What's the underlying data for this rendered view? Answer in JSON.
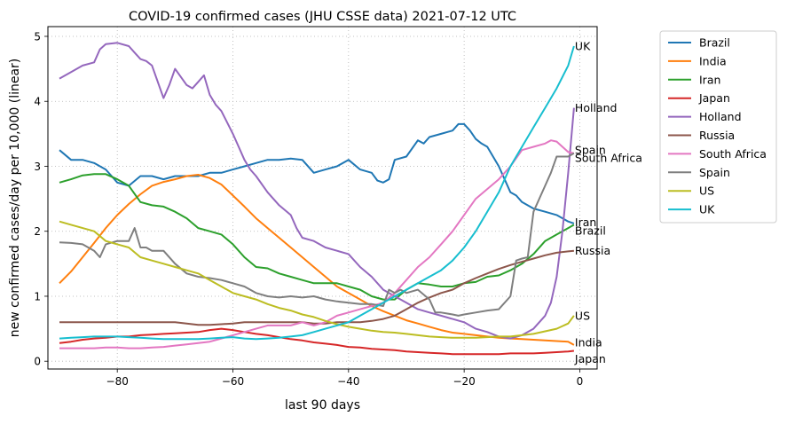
{
  "chart_data": {
    "type": "line",
    "title": "COVID-19 confirmed cases (JHU CSSE data) 2021-07-12 UTC",
    "xlabel": "last 90 days",
    "ylabel": "new confirmed cases/day per 10,000 (linear)",
    "xlim": [
      -92,
      3
    ],
    "ylim": [
      -0.12,
      5.15
    ],
    "xticks": [
      -80,
      -60,
      -40,
      -20,
      0
    ],
    "yticks": [
      0,
      1,
      2,
      3,
      4,
      5
    ],
    "xtick_labels": [
      "−80",
      "−60",
      "−40",
      "−20",
      "0"
    ],
    "ytick_labels": [
      "0",
      "1",
      "2",
      "3",
      "4",
      "5"
    ],
    "grid": true,
    "legend_position": "right, outside plot area",
    "series": [
      {
        "name": "Brazil",
        "color": "#1f77b4",
        "end_label": "Brazil",
        "x": [
          -90,
          -88,
          -86,
          -84,
          -82,
          -80,
          -78,
          -76,
          -74,
          -72,
          -70,
          -68,
          -66,
          -64,
          -62,
          -60,
          -58,
          -56,
          -54,
          -52,
          -50,
          -48,
          -46,
          -44,
          -42,
          -40,
          -38,
          -36,
          -35,
          -34,
          -33,
          -32,
          -30,
          -28,
          -27,
          -26,
          -24,
          -22,
          -21,
          -20,
          -19,
          -18,
          -17,
          -16,
          -14,
          -12,
          -11,
          -10,
          -8,
          -6,
          -4,
          -2,
          -1
        ],
        "y": [
          3.25,
          3.1,
          3.1,
          3.05,
          2.95,
          2.75,
          2.7,
          2.85,
          2.85,
          2.8,
          2.85,
          2.85,
          2.85,
          2.9,
          2.9,
          2.95,
          3.0,
          3.05,
          3.1,
          3.1,
          3.12,
          3.1,
          2.9,
          2.95,
          3.0,
          3.1,
          2.95,
          2.9,
          2.78,
          2.75,
          2.8,
          3.1,
          3.15,
          3.4,
          3.35,
          3.45,
          3.5,
          3.55,
          3.65,
          3.65,
          3.55,
          3.42,
          3.35,
          3.3,
          3.0,
          2.6,
          2.55,
          2.45,
          2.35,
          2.3,
          2.25,
          2.15,
          2.12
        ]
      },
      {
        "name": "India",
        "color": "#ff7f0e",
        "end_label": "India",
        "x": [
          -90,
          -88,
          -86,
          -84,
          -82,
          -80,
          -78,
          -76,
          -74,
          -72,
          -70,
          -68,
          -66,
          -64,
          -62,
          -60,
          -58,
          -56,
          -54,
          -52,
          -50,
          -48,
          -46,
          -44,
          -42,
          -40,
          -38,
          -36,
          -34,
          -32,
          -30,
          -28,
          -26,
          -24,
          -22,
          -20,
          -18,
          -16,
          -14,
          -12,
          -10,
          -8,
          -6,
          -4,
          -2,
          -1
        ],
        "y": [
          1.2,
          1.38,
          1.6,
          1.82,
          2.05,
          2.25,
          2.42,
          2.57,
          2.7,
          2.76,
          2.8,
          2.85,
          2.87,
          2.82,
          2.72,
          2.55,
          2.38,
          2.2,
          2.05,
          1.9,
          1.75,
          1.6,
          1.45,
          1.3,
          1.15,
          1.05,
          0.95,
          0.85,
          0.77,
          0.7,
          0.63,
          0.58,
          0.53,
          0.48,
          0.44,
          0.42,
          0.4,
          0.38,
          0.36,
          0.35,
          0.34,
          0.33,
          0.32,
          0.31,
          0.3,
          0.25
        ]
      },
      {
        "name": "Iran",
        "color": "#2ca02c",
        "end_label": "Iran",
        "x": [
          -90,
          -88,
          -86,
          -84,
          -82,
          -80,
          -78,
          -76,
          -74,
          -72,
          -70,
          -68,
          -66,
          -64,
          -62,
          -60,
          -58,
          -56,
          -54,
          -52,
          -50,
          -48,
          -46,
          -44,
          -42,
          -40,
          -38,
          -36,
          -34,
          -32,
          -30,
          -28,
          -26,
          -24,
          -22,
          -20,
          -18,
          -16,
          -14,
          -12,
          -10,
          -8,
          -6,
          -4,
          -3,
          -2,
          -1
        ],
        "y": [
          2.75,
          2.8,
          2.86,
          2.88,
          2.88,
          2.8,
          2.7,
          2.45,
          2.4,
          2.38,
          2.3,
          2.2,
          2.05,
          2.0,
          1.95,
          1.8,
          1.6,
          1.45,
          1.43,
          1.35,
          1.3,
          1.25,
          1.2,
          1.2,
          1.2,
          1.15,
          1.1,
          1.0,
          0.95,
          0.95,
          1.1,
          1.2,
          1.18,
          1.15,
          1.15,
          1.2,
          1.22,
          1.3,
          1.32,
          1.4,
          1.5,
          1.65,
          1.85,
          1.95,
          2.0,
          2.05,
          2.1
        ]
      },
      {
        "name": "Japan",
        "color": "#d62728",
        "end_label": "Japan",
        "x": [
          -90,
          -88,
          -86,
          -84,
          -82,
          -80,
          -78,
          -76,
          -74,
          -72,
          -70,
          -68,
          -66,
          -64,
          -62,
          -60,
          -58,
          -56,
          -54,
          -52,
          -50,
          -48,
          -46,
          -44,
          -42,
          -40,
          -38,
          -36,
          -34,
          -32,
          -30,
          -28,
          -26,
          -24,
          -22,
          -20,
          -18,
          -16,
          -14,
          -12,
          -10,
          -8,
          -6,
          -4,
          -2,
          -1
        ],
        "y": [
          0.28,
          0.3,
          0.33,
          0.35,
          0.36,
          0.38,
          0.38,
          0.4,
          0.41,
          0.42,
          0.43,
          0.44,
          0.45,
          0.48,
          0.5,
          0.48,
          0.45,
          0.42,
          0.4,
          0.37,
          0.34,
          0.32,
          0.29,
          0.27,
          0.25,
          0.22,
          0.21,
          0.19,
          0.18,
          0.17,
          0.15,
          0.14,
          0.13,
          0.12,
          0.11,
          0.11,
          0.11,
          0.11,
          0.11,
          0.12,
          0.12,
          0.12,
          0.13,
          0.14,
          0.15,
          0.16
        ]
      },
      {
        "name": "Holland",
        "color": "#9467bd",
        "end_label": "Holland",
        "x": [
          -90,
          -88,
          -86,
          -84,
          -83,
          -82,
          -80,
          -78,
          -77,
          -76,
          -75,
          -74,
          -72,
          -71,
          -70,
          -68,
          -67,
          -66,
          -65,
          -64,
          -63,
          -62,
          -60,
          -59,
          -58,
          -57,
          -56,
          -54,
          -52,
          -50,
          -49,
          -48,
          -46,
          -44,
          -42,
          -40,
          -38,
          -36,
          -34,
          -32,
          -30,
          -28,
          -26,
          -24,
          -22,
          -20,
          -18,
          -16,
          -14,
          -12,
          -10,
          -8,
          -6,
          -5,
          -4,
          -3,
          -2,
          -1
        ],
        "y": [
          4.35,
          4.45,
          4.55,
          4.6,
          4.8,
          4.88,
          4.9,
          4.85,
          4.75,
          4.65,
          4.62,
          4.55,
          4.05,
          4.25,
          4.5,
          4.25,
          4.2,
          4.3,
          4.4,
          4.1,
          3.95,
          3.85,
          3.5,
          3.3,
          3.1,
          2.95,
          2.85,
          2.6,
          2.4,
          2.25,
          2.05,
          1.9,
          1.85,
          1.75,
          1.7,
          1.65,
          1.45,
          1.3,
          1.1,
          1.0,
          0.9,
          0.8,
          0.75,
          0.7,
          0.65,
          0.6,
          0.5,
          0.45,
          0.38,
          0.35,
          0.4,
          0.5,
          0.7,
          0.9,
          1.3,
          2.0,
          2.9,
          3.9
        ]
      },
      {
        "name": "Russia",
        "color": "#8c564b",
        "end_label": "Russia",
        "x": [
          -90,
          -88,
          -86,
          -84,
          -82,
          -80,
          -78,
          -76,
          -74,
          -72,
          -70,
          -68,
          -66,
          -64,
          -62,
          -60,
          -58,
          -56,
          -54,
          -52,
          -50,
          -48,
          -46,
          -44,
          -42,
          -40,
          -38,
          -36,
          -34,
          -32,
          -30,
          -28,
          -26,
          -24,
          -22,
          -20,
          -18,
          -16,
          -14,
          -12,
          -10,
          -8,
          -6,
          -4,
          -2,
          -1
        ],
        "y": [
          0.6,
          0.6,
          0.6,
          0.6,
          0.6,
          0.6,
          0.6,
          0.6,
          0.6,
          0.6,
          0.6,
          0.58,
          0.56,
          0.56,
          0.57,
          0.58,
          0.6,
          0.6,
          0.6,
          0.6,
          0.6,
          0.6,
          0.58,
          0.58,
          0.6,
          0.6,
          0.6,
          0.62,
          0.65,
          0.7,
          0.8,
          0.9,
          0.98,
          1.05,
          1.1,
          1.2,
          1.28,
          1.35,
          1.42,
          1.48,
          1.53,
          1.58,
          1.63,
          1.67,
          1.69,
          1.7
        ]
      },
      {
        "name": "South Africa",
        "color": "#e377c2",
        "end_label": "South Africa",
        "x": [
          -90,
          -88,
          -86,
          -84,
          -82,
          -80,
          -78,
          -76,
          -74,
          -72,
          -70,
          -68,
          -66,
          -64,
          -62,
          -60,
          -58,
          -56,
          -54,
          -52,
          -50,
          -48,
          -46,
          -44,
          -42,
          -40,
          -38,
          -36,
          -34,
          -32,
          -30,
          -28,
          -26,
          -24,
          -22,
          -20,
          -18,
          -16,
          -14,
          -12,
          -10,
          -8,
          -6,
          -5,
          -4,
          -3,
          -2,
          -1
        ],
        "y": [
          0.2,
          0.2,
          0.2,
          0.2,
          0.21,
          0.21,
          0.2,
          0.2,
          0.21,
          0.22,
          0.24,
          0.26,
          0.28,
          0.3,
          0.35,
          0.4,
          0.45,
          0.5,
          0.55,
          0.55,
          0.55,
          0.6,
          0.55,
          0.6,
          0.7,
          0.75,
          0.8,
          0.85,
          0.9,
          1.05,
          1.25,
          1.45,
          1.6,
          1.8,
          2.0,
          2.25,
          2.5,
          2.65,
          2.8,
          3.0,
          3.25,
          3.3,
          3.35,
          3.4,
          3.38,
          3.3,
          3.22,
          3.2
        ]
      },
      {
        "name": "Spain",
        "color": "#7f7f7f",
        "end_label": "Spain",
        "x": [
          -90,
          -88,
          -86,
          -84,
          -83,
          -82,
          -80,
          -78,
          -77,
          -76,
          -75,
          -74,
          -72,
          -70,
          -68,
          -66,
          -64,
          -62,
          -60,
          -58,
          -56,
          -54,
          -52,
          -50,
          -48,
          -46,
          -44,
          -42,
          -40,
          -38,
          -36,
          -34,
          -33,
          -32,
          -31,
          -30,
          -28,
          -26,
          -25,
          -24,
          -22,
          -21,
          -20,
          -18,
          -16,
          -14,
          -12,
          -11,
          -10,
          -9,
          -8,
          -7,
          -6,
          -5,
          -4,
          -3,
          -2,
          -1
        ],
        "y": [
          1.83,
          1.82,
          1.8,
          1.7,
          1.6,
          1.8,
          1.85,
          1.85,
          2.05,
          1.75,
          1.75,
          1.7,
          1.7,
          1.5,
          1.35,
          1.3,
          1.28,
          1.25,
          1.2,
          1.15,
          1.05,
          1.0,
          0.98,
          1.0,
          0.98,
          1.0,
          0.95,
          0.92,
          0.9,
          0.88,
          0.88,
          0.85,
          1.1,
          1.05,
          1.1,
          1.05,
          1.1,
          0.95,
          0.75,
          0.75,
          0.72,
          0.7,
          0.72,
          0.75,
          0.78,
          0.8,
          1.0,
          1.55,
          1.58,
          1.6,
          2.3,
          2.5,
          2.7,
          2.9,
          3.15,
          3.15,
          3.15,
          3.2
        ]
      },
      {
        "name": "US",
        "color": "#bcbd22",
        "end_label": "US",
        "x": [
          -90,
          -88,
          -86,
          -84,
          -82,
          -80,
          -78,
          -76,
          -74,
          -72,
          -70,
          -68,
          -66,
          -64,
          -62,
          -60,
          -58,
          -56,
          -54,
          -52,
          -50,
          -48,
          -46,
          -44,
          -42,
          -40,
          -38,
          -36,
          -34,
          -32,
          -30,
          -28,
          -26,
          -24,
          -22,
          -20,
          -18,
          -16,
          -14,
          -12,
          -10,
          -8,
          -6,
          -4,
          -2,
          -1
        ],
        "y": [
          2.15,
          2.1,
          2.05,
          2.0,
          1.85,
          1.8,
          1.75,
          1.6,
          1.55,
          1.5,
          1.45,
          1.4,
          1.35,
          1.25,
          1.15,
          1.05,
          1.0,
          0.95,
          0.88,
          0.82,
          0.78,
          0.72,
          0.68,
          0.62,
          0.57,
          0.53,
          0.5,
          0.47,
          0.45,
          0.44,
          0.42,
          0.4,
          0.38,
          0.37,
          0.36,
          0.36,
          0.36,
          0.37,
          0.38,
          0.38,
          0.4,
          0.42,
          0.46,
          0.5,
          0.58,
          0.7
        ]
      },
      {
        "name": "UK",
        "color": "#17becf",
        "end_label": "UK",
        "x": [
          -90,
          -88,
          -86,
          -84,
          -82,
          -80,
          -78,
          -76,
          -74,
          -72,
          -70,
          -68,
          -66,
          -64,
          -62,
          -60,
          -58,
          -56,
          -54,
          -52,
          -50,
          -48,
          -46,
          -44,
          -42,
          -40,
          -38,
          -36,
          -34,
          -32,
          -30,
          -28,
          -26,
          -24,
          -22,
          -20,
          -18,
          -16,
          -14,
          -12,
          -10,
          -8,
          -6,
          -4,
          -2,
          -1
        ],
        "y": [
          0.35,
          0.36,
          0.37,
          0.38,
          0.38,
          0.38,
          0.37,
          0.36,
          0.35,
          0.34,
          0.34,
          0.34,
          0.34,
          0.35,
          0.36,
          0.37,
          0.35,
          0.34,
          0.35,
          0.36,
          0.38,
          0.4,
          0.45,
          0.5,
          0.55,
          0.6,
          0.7,
          0.8,
          0.9,
          1.0,
          1.1,
          1.2,
          1.3,
          1.4,
          1.55,
          1.75,
          2.0,
          2.3,
          2.6,
          3.0,
          3.3,
          3.6,
          3.9,
          4.2,
          4.55,
          4.85
        ]
      }
    ]
  }
}
